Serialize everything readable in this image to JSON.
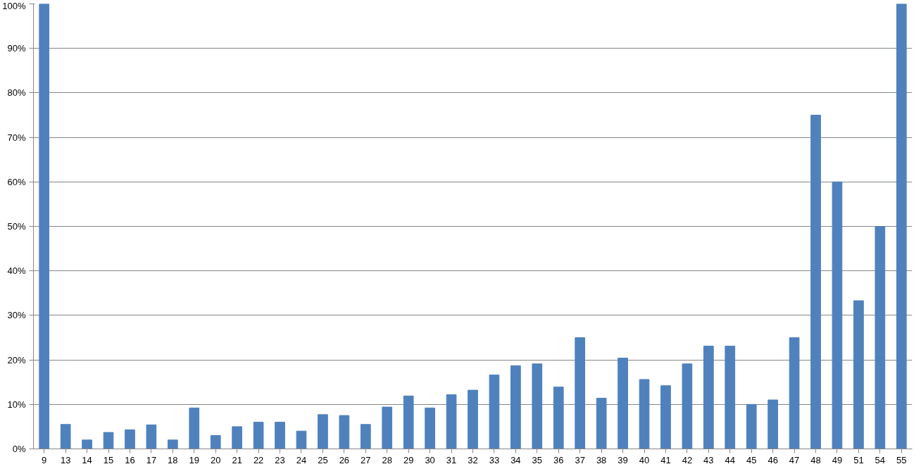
{
  "chart_data": {
    "type": "bar",
    "categories": [
      "9",
      "13",
      "14",
      "15",
      "16",
      "17",
      "18",
      "19",
      "20",
      "21",
      "22",
      "23",
      "24",
      "25",
      "26",
      "27",
      "28",
      "29",
      "30",
      "31",
      "32",
      "33",
      "34",
      "35",
      "36",
      "37",
      "38",
      "39",
      "40",
      "41",
      "42",
      "43",
      "44",
      "45",
      "46",
      "47",
      "48",
      "49",
      "51",
      "54",
      "55"
    ],
    "values": [
      100,
      5.5,
      2.0,
      3.7,
      4.3,
      5.4,
      2.0,
      9.2,
      3.0,
      5.0,
      6.0,
      6.0,
      4.0,
      7.7,
      7.5,
      5.5,
      9.4,
      11.9,
      9.2,
      12.2,
      13.2,
      16.6,
      18.7,
      19.1,
      13.9,
      25,
      11.4,
      20.4,
      15.6,
      14.2,
      19.1,
      23.1,
      23.1,
      10.0,
      11.0,
      25,
      75,
      60,
      33.3,
      50,
      100
    ],
    "color": "#4f81bd",
    "ylim": [
      0,
      100
    ],
    "yticks": [
      {
        "value": 0,
        "label": "0%"
      },
      {
        "value": 10,
        "label": "10%"
      },
      {
        "value": 20,
        "label": "20%"
      },
      {
        "value": 30,
        "label": "30%"
      },
      {
        "value": 40,
        "label": "40%"
      },
      {
        "value": 50,
        "label": "50%"
      },
      {
        "value": 60,
        "label": "60%"
      },
      {
        "value": 70,
        "label": "70%"
      },
      {
        "value": 80,
        "label": "80%"
      },
      {
        "value": 90,
        "label": "90%"
      },
      {
        "value": 100,
        "label": "100%"
      }
    ],
    "grid": "y"
  }
}
